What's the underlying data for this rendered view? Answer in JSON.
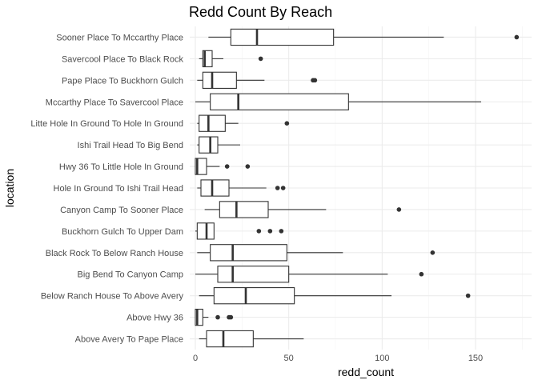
{
  "chart_data": {
    "type": "boxplot",
    "orientation": "horizontal",
    "title": "Redd Count By Reach",
    "xlabel": "redd_count",
    "ylabel": "location",
    "xlim": [
      -3,
      180
    ],
    "xticks": [
      0,
      50,
      100,
      150
    ],
    "grid": true,
    "categories": [
      {
        "label": "Sooner Place To Mccarthy Place",
        "min": 7,
        "q1": 19,
        "median": 33,
        "q3": 74,
        "max": 133,
        "outliers": [
          172
        ]
      },
      {
        "label": "Savercool Place  To Black Rock",
        "min": 2,
        "q1": 4,
        "median": 5,
        "q3": 9,
        "max": 15,
        "outliers": [
          35
        ]
      },
      {
        "label": "Pape Place To Buckhorn Gulch",
        "min": 1,
        "q1": 4,
        "median": 9,
        "q3": 22,
        "max": 37,
        "outliers": [
          63,
          64
        ]
      },
      {
        "label": "Mccarthy Place To Savercool Place",
        "min": 0,
        "q1": 8,
        "median": 23,
        "q3": 82,
        "max": 153,
        "outliers": []
      },
      {
        "label": "Litte Hole In Ground To Hole In Ground",
        "min": 1,
        "q1": 2,
        "median": 7,
        "q3": 16,
        "max": 23,
        "outliers": [
          49
        ]
      },
      {
        "label": "Ishi Trail Head To Big Bend",
        "min": 1,
        "q1": 2,
        "median": 8,
        "q3": 12,
        "max": 24,
        "outliers": []
      },
      {
        "label": "Hwy 36 To Little Hole In Ground",
        "min": 0,
        "q1": 0,
        "median": 1,
        "q3": 6,
        "max": 13,
        "outliers": [
          17,
          28
        ]
      },
      {
        "label": "Hole In Ground To Ishi Trail Head",
        "min": 1,
        "q1": 3,
        "median": 9,
        "q3": 18,
        "max": 38,
        "outliers": [
          44,
          47
        ]
      },
      {
        "label": "Canyon Camp To Sooner Place",
        "min": 5,
        "q1": 13,
        "median": 22,
        "q3": 39,
        "max": 70,
        "outliers": [
          109
        ]
      },
      {
        "label": "Buckhorn Gulch To Upper Dam",
        "min": 0,
        "q1": 1,
        "median": 6,
        "q3": 10,
        "max": 10,
        "outliers": [
          34,
          40,
          46
        ]
      },
      {
        "label": "Black Rock To Below Ranch House",
        "min": 1,
        "q1": 8,
        "median": 20,
        "q3": 49,
        "max": 79,
        "outliers": [
          127
        ]
      },
      {
        "label": "Big Bend To Canyon Camp",
        "min": 0,
        "q1": 12,
        "median": 20,
        "q3": 50,
        "max": 103,
        "outliers": [
          121
        ]
      },
      {
        "label": "Below Ranch House To Above Avery",
        "min": 2,
        "q1": 10,
        "median": 27,
        "q3": 53,
        "max": 105,
        "outliers": [
          146
        ]
      },
      {
        "label": "Above Hwy 36",
        "min": 0,
        "q1": 0,
        "median": 1,
        "q3": 4,
        "max": 7,
        "outliers": [
          12,
          18,
          19
        ]
      },
      {
        "label": "Above Avery To Pape Place",
        "min": 2,
        "q1": 6,
        "median": 15,
        "q3": 31,
        "max": 58,
        "outliers": []
      }
    ]
  }
}
